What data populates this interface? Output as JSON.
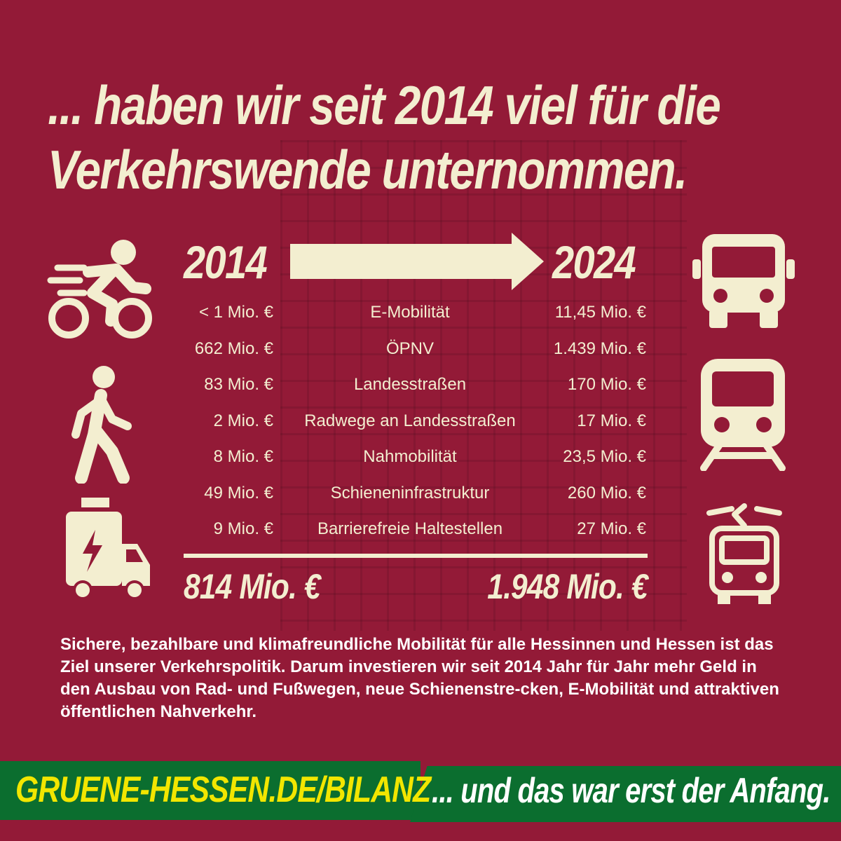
{
  "headline": {
    "line1": "... haben wir seit 2014 viel für die",
    "line2": "Verkehrswende unternommen."
  },
  "years": {
    "from": "2014",
    "to": "2024"
  },
  "rows": [
    {
      "v2014": "< 1 Mio. €",
      "category": "E-Mobilität",
      "v2024": "11,45 Mio. €"
    },
    {
      "v2014": "662 Mio. €",
      "category": "ÖPNV",
      "v2024": "1.439 Mio. €"
    },
    {
      "v2014": "83 Mio. €",
      "category": "Landesstraßen",
      "v2024": "170 Mio. €"
    },
    {
      "v2014": "2 Mio. €",
      "category": "Radwege an Landesstraßen",
      "v2024": "17 Mio. €"
    },
    {
      "v2014": "8 Mio. €",
      "category": "Nahmobilität",
      "v2024": "23,5 Mio. €"
    },
    {
      "v2014": "49 Mio. €",
      "category": "Schieneninfrastruktur",
      "v2024": "260 Mio. €"
    },
    {
      "v2014": "9 Mio. €",
      "category": "Barrierefreie Haltestellen",
      "v2024": "27 Mio. €"
    }
  ],
  "totals": {
    "from": "814 Mio. €",
    "to": "1.948 Mio. €"
  },
  "paragraph": "Sichere, bezahlbare und klimafreundliche Mobilität für alle Hessinnen und Hessen ist das Ziel unserer Verkehrspolitik. Darum investieren wir seit 2014 Jahr für Jahr mehr Geld in den Ausbau von Rad- und Fußwegen, neue Schienenstre-cken, E-Mobilität und attraktiven öffentlichen Nahverkehr.",
  "banner": {
    "url": "GRUENE-HESSEN.DE/BILANZ",
    "slogan": "... und das war erst der Anfang."
  },
  "colors": {
    "background": "#931a37",
    "cream": "#f3eed0",
    "banner_green": "#0b6e2f",
    "banner_yellow": "#f2e600"
  },
  "icons": [
    "cyclist-icon",
    "pedestrian-icon",
    "electric-van-icon",
    "bus-icon",
    "train-icon",
    "tram-icon"
  ]
}
